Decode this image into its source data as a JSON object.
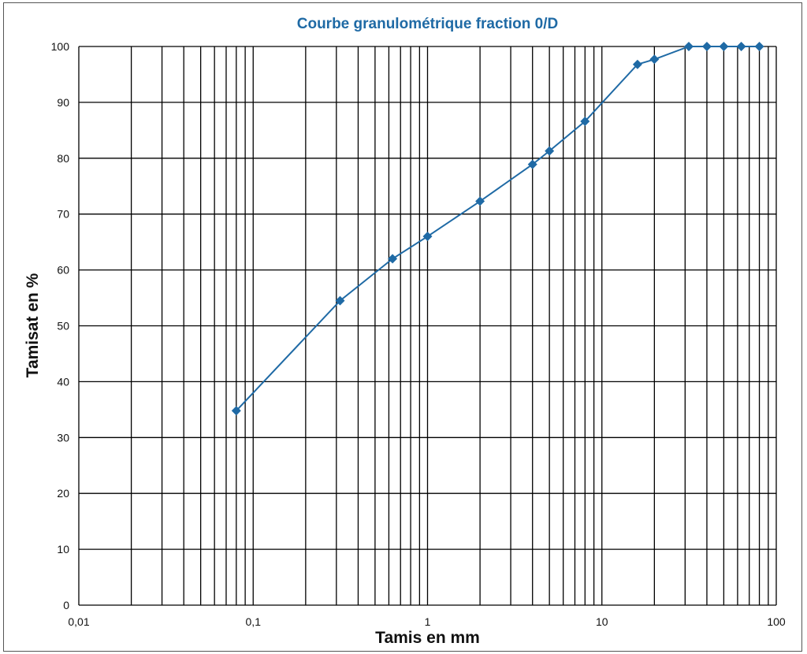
{
  "chart_data": {
    "type": "line",
    "title": "Courbe granulométrique fraction 0/D",
    "xlabel": "Tamis en mm",
    "ylabel": "Tamisat en %",
    "x_scale": "log",
    "xlim": [
      0.01,
      100
    ],
    "ylim": [
      0,
      100
    ],
    "grid": true,
    "x_tick_labels": [
      "0,01",
      "0,1",
      "1",
      "10",
      "100"
    ],
    "y_tick_labels": [
      "0",
      "10",
      "20",
      "30",
      "40",
      "50",
      "60",
      "70",
      "80",
      "90",
      "100"
    ],
    "series": [
      {
        "x": [
          0.08,
          0.315,
          0.63,
          1,
          2,
          4,
          5,
          8,
          16,
          20,
          31.5,
          40,
          50,
          63,
          80
        ],
        "y": [
          34.8,
          54.5,
          62,
          66,
          72.3,
          78.9,
          81.3,
          86.6,
          96.8,
          97.7,
          100,
          100,
          100,
          100,
          100
        ]
      }
    ],
    "colors": {
      "series": "#1f6aa5",
      "grid": "#000000",
      "title": "#1f6aa5"
    }
  }
}
